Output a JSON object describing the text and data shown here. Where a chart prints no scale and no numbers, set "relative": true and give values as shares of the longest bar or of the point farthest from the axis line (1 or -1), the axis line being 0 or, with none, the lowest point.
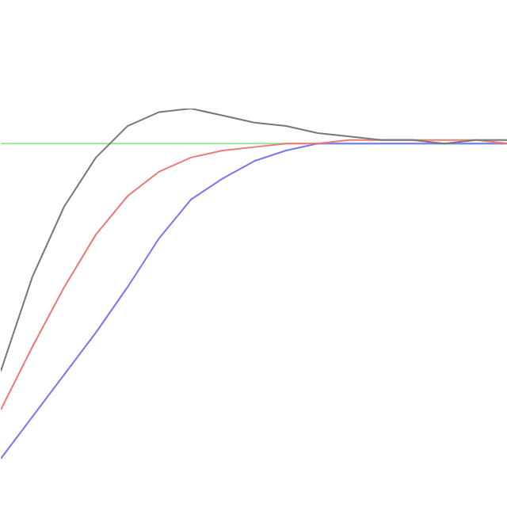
{
  "chart_data": {
    "type": "line",
    "relative": true,
    "categories": [
      null,
      null,
      null,
      null,
      null,
      null,
      null,
      null,
      null,
      null,
      null,
      null,
      null,
      null,
      null,
      null,
      null
    ],
    "series": [
      {
        "color": "#777777",
        "values": [
          0.25,
          0.52,
          0.72,
          0.86,
          0.95,
          0.99,
          1.0,
          0.98,
          0.96,
          0.95,
          0.93,
          0.92,
          0.91,
          0.91,
          0.9,
          0.91,
          0.91
        ]
      },
      {
        "color": "#ee7777",
        "values": [
          0.14,
          0.32,
          0.49,
          0.64,
          0.75,
          0.82,
          0.86,
          0.88,
          0.89,
          0.9,
          0.9,
          0.91,
          0.91,
          0.91,
          0.91,
          0.91,
          0.9
        ]
      },
      {
        "color": "#7777ee",
        "values": [
          0.0,
          0.12,
          0.24,
          0.36,
          0.49,
          0.63,
          0.74,
          0.8,
          0.85,
          0.88,
          0.9,
          0.9,
          0.9,
          0.9,
          0.9,
          0.9,
          0.9
        ]
      }
    ],
    "ref_lines": [
      {
        "axis": "y",
        "value": 0.9,
        "color": "#99e699"
      }
    ],
    "grid": false
  }
}
